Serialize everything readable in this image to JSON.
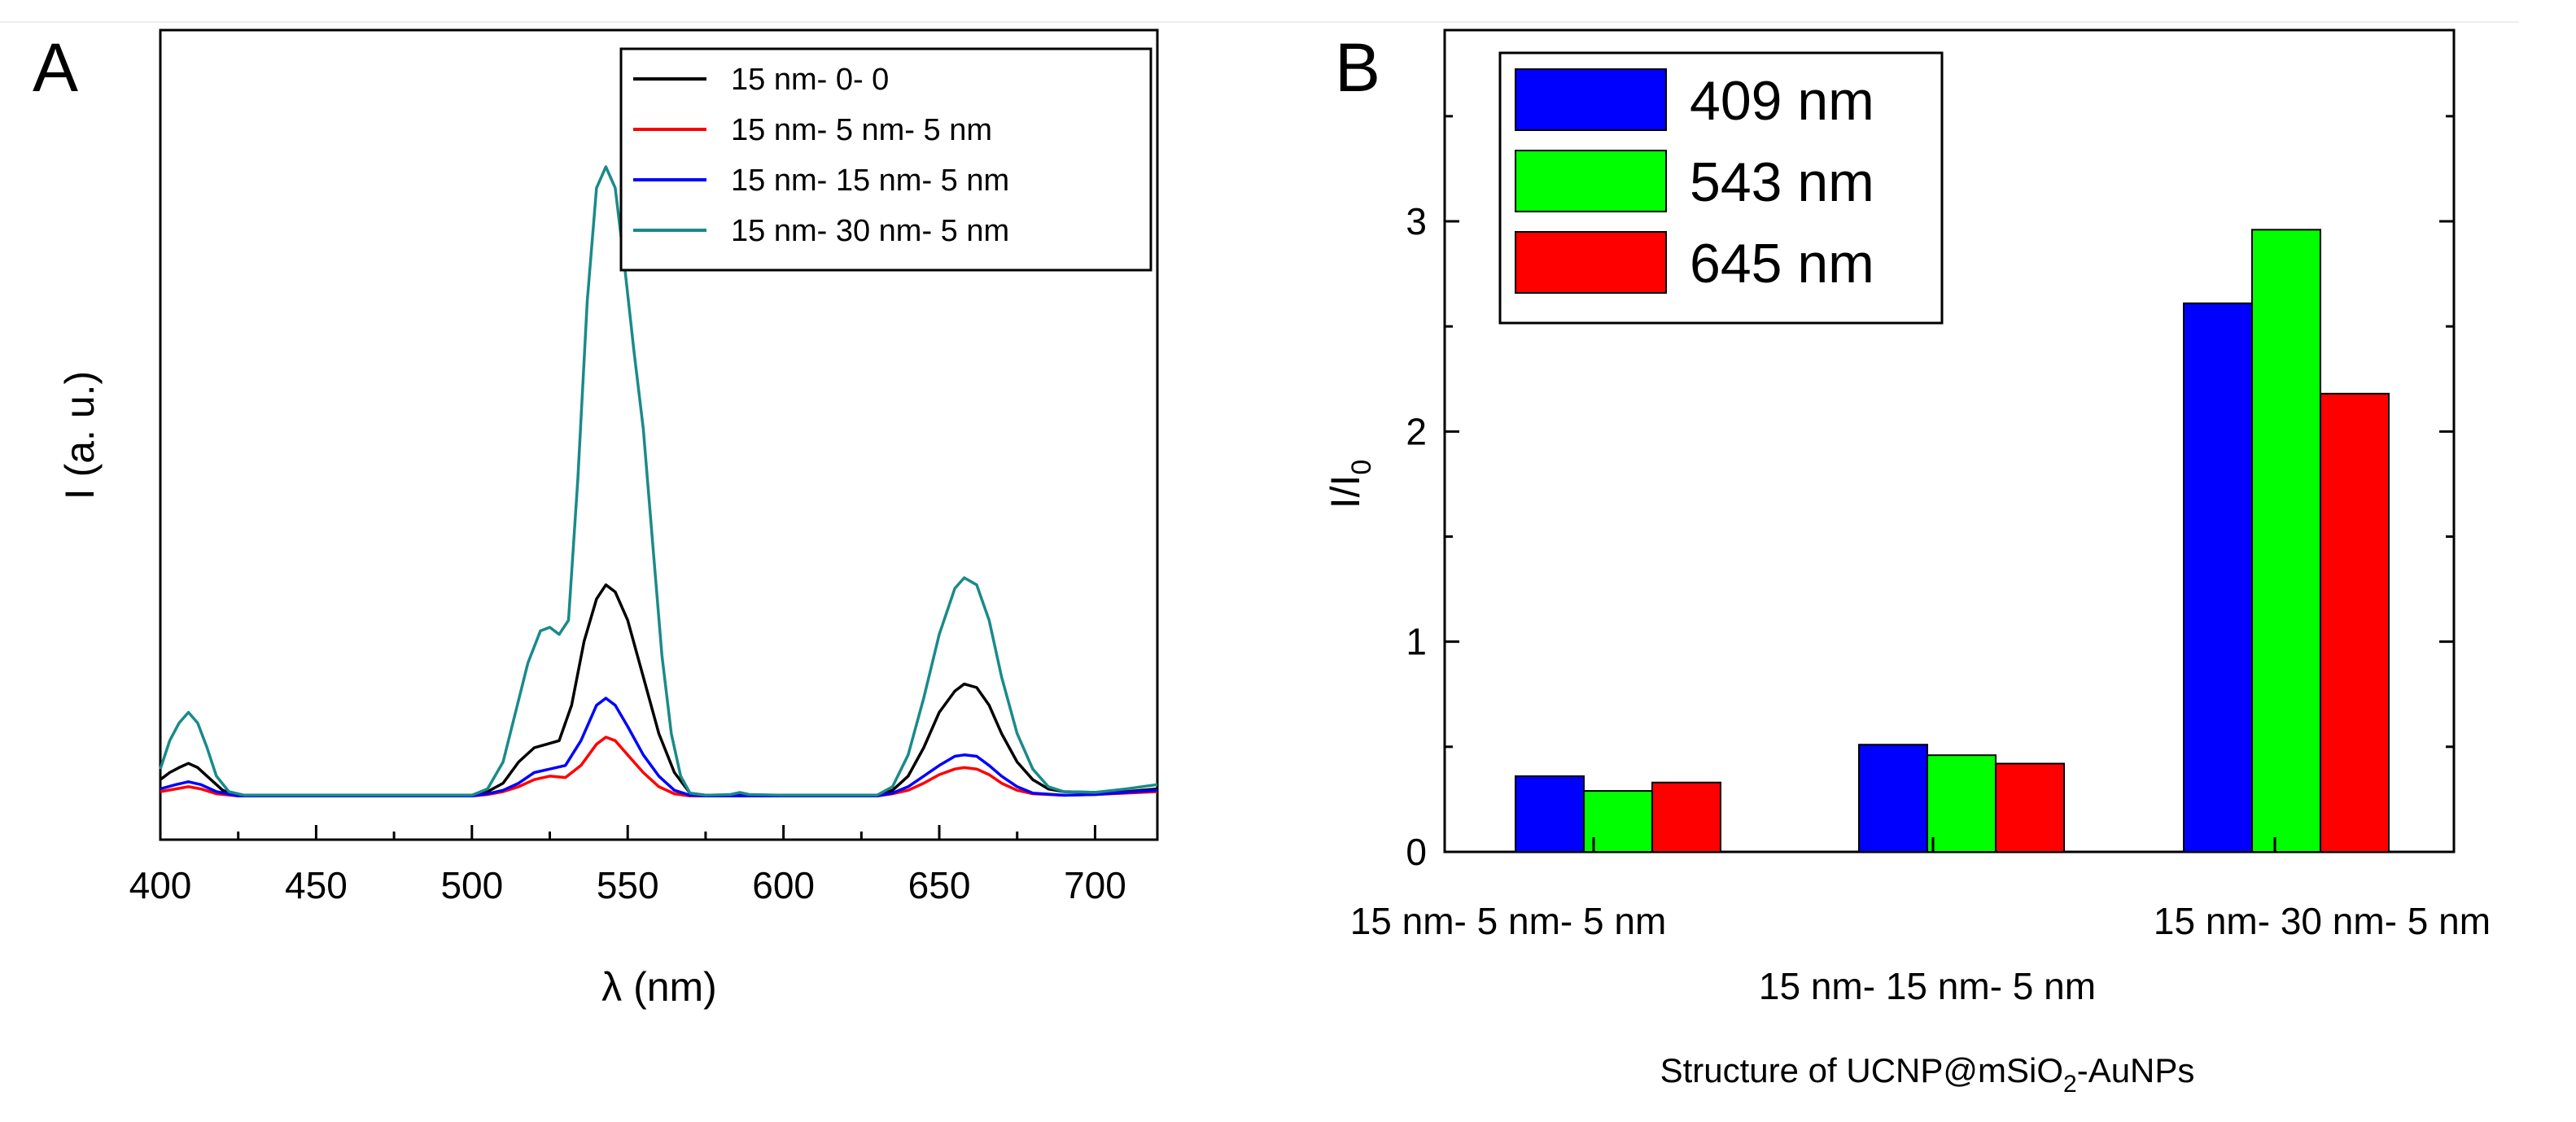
{
  "chart_data": [
    {
      "panel": "A",
      "type": "line",
      "title": "",
      "xlabel": "λ (nm)",
      "ylabel": "I (a. u.)",
      "xlim": [
        400,
        720
      ],
      "ylim": [
        0,
        10
      ],
      "x_ticks": [
        400,
        450,
        500,
        550,
        600,
        650,
        700
      ],
      "legend_position": "top-right",
      "series": [
        {
          "name": "15 nm- 0- 0",
          "color": "#000000",
          "points": [
            [
              400,
              0.25
            ],
            [
              403,
              0.35
            ],
            [
              406,
              0.42
            ],
            [
              409,
              0.48
            ],
            [
              412,
              0.42
            ],
            [
              415,
              0.3
            ],
            [
              420,
              0.1
            ],
            [
              425,
              0.03
            ],
            [
              500,
              0.03
            ],
            [
              505,
              0.08
            ],
            [
              510,
              0.2
            ],
            [
              515,
              0.5
            ],
            [
              520,
              0.7
            ],
            [
              524,
              0.75
            ],
            [
              528,
              0.8
            ],
            [
              532,
              1.3
            ],
            [
              536,
              2.2
            ],
            [
              540,
              2.8
            ],
            [
              543,
              3.0
            ],
            [
              546,
              2.9
            ],
            [
              550,
              2.5
            ],
            [
              555,
              1.7
            ],
            [
              560,
              0.9
            ],
            [
              565,
              0.35
            ],
            [
              570,
              0.06
            ],
            [
              575,
              0.03
            ],
            [
              630,
              0.03
            ],
            [
              635,
              0.1
            ],
            [
              640,
              0.3
            ],
            [
              645,
              0.7
            ],
            [
              650,
              1.2
            ],
            [
              655,
              1.5
            ],
            [
              658,
              1.6
            ],
            [
              662,
              1.55
            ],
            [
              666,
              1.3
            ],
            [
              670,
              0.9
            ],
            [
              675,
              0.5
            ],
            [
              680,
              0.25
            ],
            [
              685,
              0.12
            ],
            [
              690,
              0.08
            ],
            [
              700,
              0.07
            ],
            [
              710,
              0.08
            ],
            [
              715,
              0.1
            ],
            [
              720,
              0.12
            ]
          ]
        },
        {
          "name": "15 nm- 5 nm- 5 nm",
          "color": "#ff0000",
          "points": [
            [
              400,
              0.08
            ],
            [
              405,
              0.12
            ],
            [
              409,
              0.15
            ],
            [
              413,
              0.12
            ],
            [
              418,
              0.05
            ],
            [
              425,
              0.02
            ],
            [
              500,
              0.02
            ],
            [
              505,
              0.04
            ],
            [
              510,
              0.08
            ],
            [
              515,
              0.15
            ],
            [
              520,
              0.25
            ],
            [
              525,
              0.3
            ],
            [
              530,
              0.28
            ],
            [
              535,
              0.45
            ],
            [
              540,
              0.75
            ],
            [
              543,
              0.85
            ],
            [
              546,
              0.8
            ],
            [
              550,
              0.6
            ],
            [
              555,
              0.35
            ],
            [
              560,
              0.15
            ],
            [
              565,
              0.05
            ],
            [
              570,
              0.02
            ],
            [
              630,
              0.02
            ],
            [
              635,
              0.05
            ],
            [
              640,
              0.1
            ],
            [
              645,
              0.2
            ],
            [
              650,
              0.32
            ],
            [
              655,
              0.4
            ],
            [
              658,
              0.42
            ],
            [
              662,
              0.4
            ],
            [
              666,
              0.32
            ],
            [
              670,
              0.2
            ],
            [
              675,
              0.1
            ],
            [
              680,
              0.05
            ],
            [
              690,
              0.03
            ],
            [
              700,
              0.04
            ],
            [
              710,
              0.06
            ],
            [
              720,
              0.08
            ]
          ]
        },
        {
          "name": "15 nm- 15 nm- 5 nm",
          "color": "#0000ff",
          "points": [
            [
              400,
              0.12
            ],
            [
              405,
              0.18
            ],
            [
              409,
              0.22
            ],
            [
              413,
              0.18
            ],
            [
              418,
              0.08
            ],
            [
              425,
              0.02
            ],
            [
              500,
              0.02
            ],
            [
              505,
              0.05
            ],
            [
              510,
              0.1
            ],
            [
              515,
              0.2
            ],
            [
              520,
              0.35
            ],
            [
              525,
              0.4
            ],
            [
              530,
              0.45
            ],
            [
              535,
              0.8
            ],
            [
              540,
              1.3
            ],
            [
              543,
              1.4
            ],
            [
              546,
              1.3
            ],
            [
              550,
              1.0
            ],
            [
              555,
              0.6
            ],
            [
              560,
              0.3
            ],
            [
              565,
              0.1
            ],
            [
              570,
              0.03
            ],
            [
              575,
              0.02
            ],
            [
              630,
              0.02
            ],
            [
              635,
              0.06
            ],
            [
              640,
              0.15
            ],
            [
              645,
              0.3
            ],
            [
              650,
              0.45
            ],
            [
              655,
              0.58
            ],
            [
              658,
              0.6
            ],
            [
              662,
              0.58
            ],
            [
              666,
              0.45
            ],
            [
              670,
              0.3
            ],
            [
              675,
              0.15
            ],
            [
              680,
              0.06
            ],
            [
              690,
              0.03
            ],
            [
              700,
              0.04
            ],
            [
              710,
              0.07
            ],
            [
              720,
              0.1
            ]
          ]
        },
        {
          "name": "15 nm- 30 nm- 5 nm",
          "color": "#1a8a8a",
          "points": [
            [
              400,
              0.4
            ],
            [
              403,
              0.8
            ],
            [
              406,
              1.05
            ],
            [
              409,
              1.2
            ],
            [
              412,
              1.05
            ],
            [
              415,
              0.7
            ],
            [
              418,
              0.3
            ],
            [
              422,
              0.08
            ],
            [
              427,
              0.03
            ],
            [
              500,
              0.03
            ],
            [
              505,
              0.12
            ],
            [
              510,
              0.5
            ],
            [
              514,
              1.2
            ],
            [
              518,
              1.9
            ],
            [
              522,
              2.35
            ],
            [
              525,
              2.4
            ],
            [
              528,
              2.3
            ],
            [
              531,
              2.5
            ],
            [
              534,
              4.5
            ],
            [
              537,
              7.0
            ],
            [
              540,
              8.6
            ],
            [
              543,
              8.9
            ],
            [
              546,
              8.6
            ],
            [
              549,
              7.5
            ],
            [
              552,
              6.3
            ],
            [
              555,
              5.2
            ],
            [
              558,
              3.6
            ],
            [
              561,
              2.0
            ],
            [
              564,
              0.9
            ],
            [
              567,
              0.3
            ],
            [
              570,
              0.06
            ],
            [
              575,
              0.03
            ],
            [
              583,
              0.04
            ],
            [
              586,
              0.07
            ],
            [
              589,
              0.04
            ],
            [
              600,
              0.03
            ],
            [
              630,
              0.03
            ],
            [
              635,
              0.15
            ],
            [
              640,
              0.6
            ],
            [
              645,
              1.4
            ],
            [
              650,
              2.3
            ],
            [
              655,
              2.95
            ],
            [
              658,
              3.1
            ],
            [
              662,
              3.0
            ],
            [
              666,
              2.5
            ],
            [
              670,
              1.7
            ],
            [
              675,
              0.9
            ],
            [
              680,
              0.4
            ],
            [
              685,
              0.15
            ],
            [
              690,
              0.08
            ],
            [
              700,
              0.07
            ],
            [
              710,
              0.12
            ],
            [
              720,
              0.18
            ]
          ]
        }
      ]
    },
    {
      "panel": "B",
      "type": "bar",
      "title": "",
      "xlabel": "Structure of UCNP@mSiO2-AuNPs",
      "ylabel": "I/I0",
      "ylim": [
        0,
        3.8
      ],
      "y_ticks": [
        0,
        1,
        2,
        3
      ],
      "categories": [
        "15 nm- 5 nm- 5 nm",
        "15 nm- 15 nm- 5 nm",
        "15 nm- 30 nm- 5 nm"
      ],
      "legend_position": "top-left",
      "series": [
        {
          "name": "409 nm",
          "color": "#0000ff",
          "values": [
            0.36,
            0.51,
            2.61
          ]
        },
        {
          "name": "543 nm",
          "color": "#00ff00",
          "values": [
            0.29,
            0.46,
            2.96
          ]
        },
        {
          "name": "645 nm",
          "color": "#ff0000",
          "values": [
            0.33,
            0.42,
            2.18
          ]
        }
      ]
    }
  ],
  "labels": {
    "panel_a": "A",
    "panel_b": "B",
    "xlabel_a": "λ (nm)",
    "ylabel_a": "I (a. u.)",
    "ylabel_b_main": "I/I",
    "ylabel_b_sub": "0",
    "xlabel_b_pre": "Structure of UCNP@mSiO",
    "xlabel_b_sub": "2",
    "xlabel_b_post": "-AuNPs"
  }
}
